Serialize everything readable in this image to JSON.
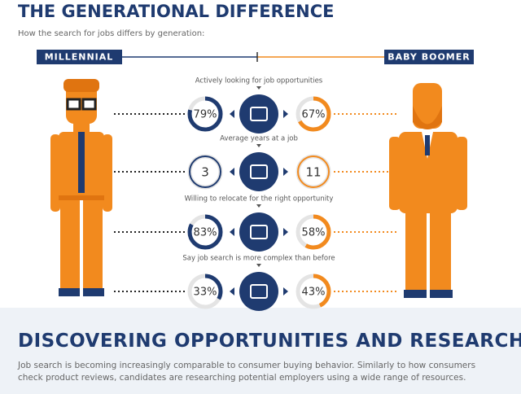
{
  "header": {
    "title": "THE GENERATIONAL DIFFERENCE",
    "subtitle": "How the search for jobs differs by generation:"
  },
  "generations": {
    "left": "MILLENNIAL",
    "right": "BABY BOOMER"
  },
  "rows": [
    {
      "label": "Actively looking for job opportunities",
      "millennial": {
        "value": 79,
        "label": "79%"
      },
      "boomer": {
        "value": 67,
        "label": "67%"
      }
    },
    {
      "label": "Average years at a job",
      "millennial": 3,
      "boomer": 11
    },
    {
      "label": "Willing to relocate for the right opportunity",
      "millennial": {
        "value": 83,
        "label": "83%"
      },
      "boomer": {
        "value": 58,
        "label": "58%"
      }
    },
    {
      "label": "Say job search is more complex than before",
      "millennial": {
        "value": 33,
        "label": "33%"
      },
      "boomer": {
        "value": 43,
        "label": "43%"
      }
    }
  ],
  "footer": {
    "title": "DISCOVERING OPPORTUNITIES AND RESEARCH",
    "text": "Job search is becoming increasingly comparable to consumer buying behavior. Similarly to how consumers check product reviews, candidates are researching potential employers using a wide range of resources."
  }
}
